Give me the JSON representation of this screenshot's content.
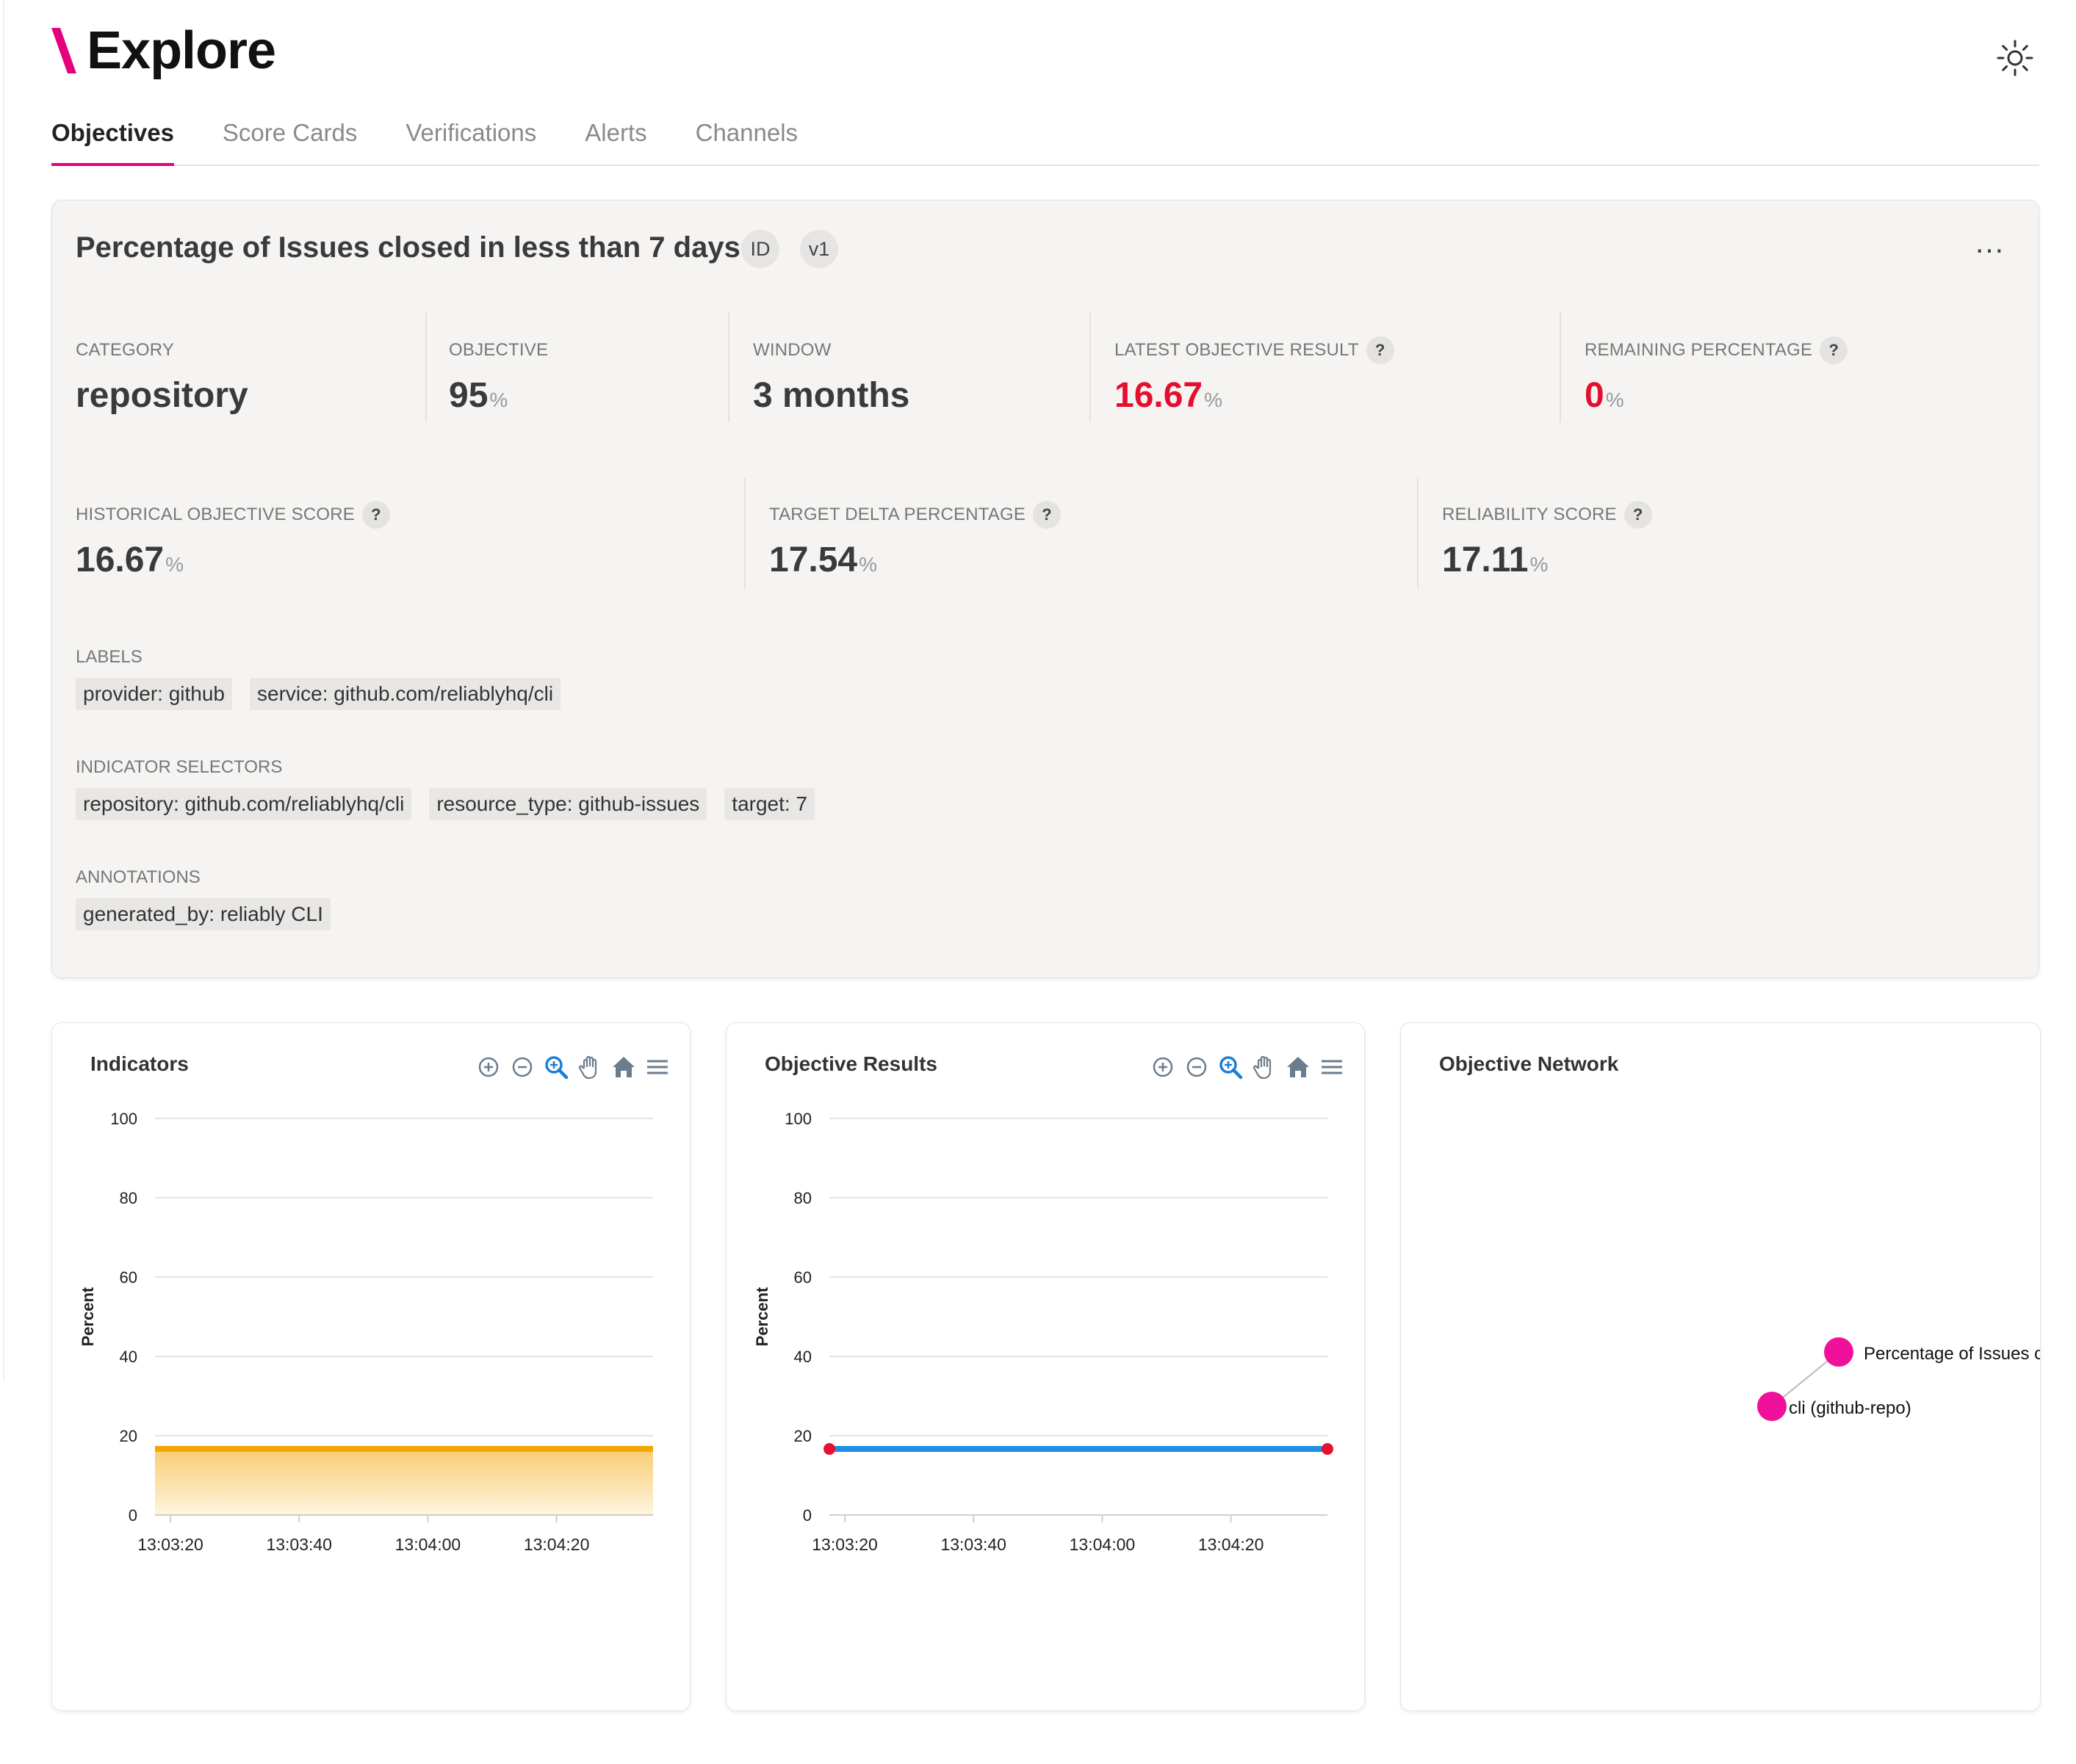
{
  "app": {
    "title": "Explore"
  },
  "tabs": [
    {
      "label": "Objectives",
      "active": true
    },
    {
      "label": "Score Cards",
      "active": false
    },
    {
      "label": "Verifications",
      "active": false
    },
    {
      "label": "Alerts",
      "active": false
    },
    {
      "label": "Channels",
      "active": false
    }
  ],
  "objective": {
    "title": "Percentage of Issues closed in less than 7 days",
    "id_badge": "ID",
    "version_badge": "v1",
    "more_menu": "…",
    "stats_row1": [
      {
        "label": "CATEGORY",
        "value": "repository",
        "unit": ""
      },
      {
        "label": "OBJECTIVE",
        "value": "95",
        "unit": "%"
      },
      {
        "label": "WINDOW",
        "value": "3 months",
        "unit": ""
      },
      {
        "label": "LATEST OBJECTIVE RESULT",
        "value": "16.67",
        "unit": "%",
        "help": "?"
      },
      {
        "label": "REMAINING PERCENTAGE",
        "value": "0",
        "unit": "%",
        "help": "?"
      }
    ],
    "stats_row2": [
      {
        "label": "HISTORICAL OBJECTIVE SCORE",
        "value": "16.67",
        "unit": "%",
        "help": "?"
      },
      {
        "label": "TARGET DELTA PERCENTAGE",
        "value": "17.54",
        "unit": "%",
        "help": "?"
      },
      {
        "label": "RELIABILITY SCORE",
        "value": "17.11",
        "unit": "%",
        "help": "?"
      }
    ],
    "labels_title": "LABELS",
    "labels": [
      "provider: github",
      "service: github.com/reliablyhq/cli"
    ],
    "selectors_title": "INDICATOR SELECTORS",
    "selectors": [
      "repository: github.com/reliablyhq/cli",
      "resource_type: github-issues",
      "target: 7"
    ],
    "annotations_title": "ANNOTATIONS",
    "annotations": [
      "generated_by: reliably CLI"
    ]
  },
  "colors": {
    "brand": "#e5007e",
    "alert_red": "#e40f2e",
    "indicator_line": "#f5a400",
    "result_line": "#1e90e6",
    "result_point": "#e8102e",
    "network_node": "#f0119b"
  },
  "panels": {
    "indicators": {
      "title": "Indicators",
      "toolbar": [
        "zoom-in-icon",
        "zoom-out-icon",
        "selection-zoom-icon",
        "pan-hand-icon",
        "home-reset-icon",
        "menu-icon"
      ]
    },
    "results": {
      "title": "Objective Results",
      "toolbar": [
        "zoom-in-icon",
        "zoom-out-icon",
        "selection-zoom-icon",
        "pan-hand-icon",
        "home-reset-icon",
        "menu-icon"
      ]
    },
    "network": {
      "title": "Objective Network"
    }
  },
  "chart_data": [
    {
      "type": "area",
      "title": "Indicators",
      "ylabel": "Percent",
      "ylim": [
        0,
        100
      ],
      "yticks": [
        "0",
        "20",
        "40",
        "60",
        "80",
        "100"
      ],
      "xticks": [
        "13:03:20",
        "13:03:40",
        "13:04:00",
        "13:04:20"
      ],
      "x": [
        "13:03:20",
        "13:04:35"
      ],
      "series": [
        {
          "values": [
            16.7,
            16.7
          ]
        }
      ]
    },
    {
      "type": "line",
      "title": "Objective Results",
      "ylabel": "Percent",
      "ylim": [
        0,
        100
      ],
      "yticks": [
        "0",
        "20",
        "40",
        "60",
        "80",
        "100"
      ],
      "xticks": [
        "13:03:20",
        "13:03:40",
        "13:04:00",
        "13:04:20"
      ],
      "x": [
        "13:03:20",
        "13:04:35"
      ],
      "series": [
        {
          "values": [
            16.67,
            16.67
          ]
        }
      ]
    }
  ],
  "network": {
    "nodes": [
      {
        "label": "Percentage of Issues closed"
      },
      {
        "label": "cli (github-repo)"
      }
    ]
  }
}
